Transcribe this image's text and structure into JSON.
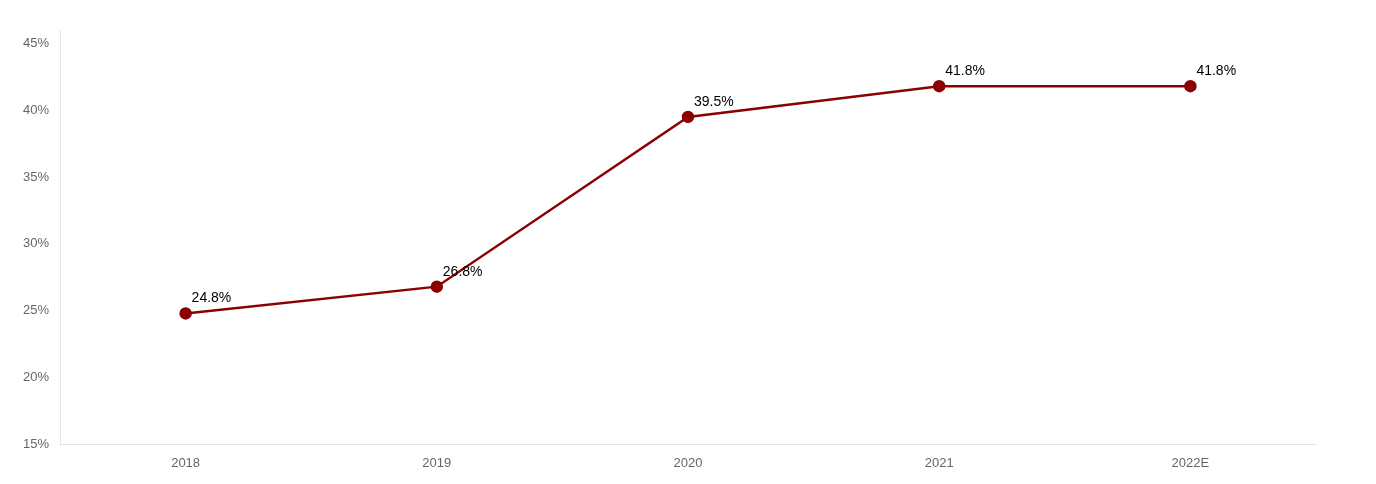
{
  "chart_data": {
    "type": "line",
    "categories": [
      "2018",
      "2019",
      "2020",
      "2021",
      "2022E"
    ],
    "values": [
      24.8,
      26.8,
      39.5,
      41.8,
      41.8
    ],
    "value_labels": [
      "24.8%",
      "26.8%",
      "39.5%",
      "41.8%",
      "41.8%"
    ],
    "data_labels": true,
    "color": "#8B0000",
    "marker": "circle",
    "line_style": "solid",
    "ylim": [
      15,
      46
    ],
    "yticks": [
      {
        "value": 15,
        "label": "15%"
      },
      {
        "value": 20,
        "label": "20%"
      },
      {
        "value": 25,
        "label": "25%"
      },
      {
        "value": 30,
        "label": "30%"
      },
      {
        "value": 35,
        "label": "35%"
      },
      {
        "value": 40,
        "label": "40%"
      },
      {
        "value": 45,
        "label": "45%"
      }
    ],
    "grid": false
  }
}
